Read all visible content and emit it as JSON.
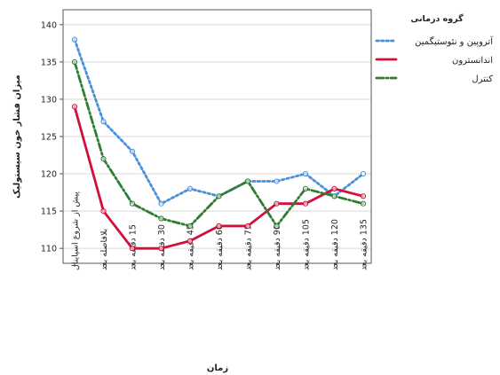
{
  "chart_data": {
    "type": "line",
    "xlabel": "زمان",
    "ylabel": "میزان فشار خون سیستولیک",
    "categories": [
      "پیش از شروع اسپاینال",
      "بلافاصله بعد",
      "15 دقیقه بعد",
      "30 دقیقه بعد",
      "45 دقیقه بعد",
      "60 دقیقه بعد",
      "75 دقیقه بعد",
      "90 دقیقه بعد",
      "105 دقیقه بعد",
      "120 دقیقه بعد",
      "135 دقیقه بعد"
    ],
    "ylim": [
      108,
      142
    ],
    "yticks": [
      110,
      115,
      120,
      125,
      130,
      135,
      140
    ],
    "grid": "horizontal",
    "legend": {
      "title": "گروه درمانی",
      "position": "top-right"
    },
    "series": [
      {
        "name": "آتروپین و نئوستیگمین",
        "color": "#4a90d9",
        "dash": "dotted",
        "values": [
          138,
          127,
          123,
          116,
          118,
          117,
          119,
          119,
          120,
          117,
          120
        ]
      },
      {
        "name": "اندانسترون",
        "color": "#d0103a",
        "dash": "solid",
        "values": [
          129,
          115,
          110,
          110,
          111,
          113,
          113,
          116,
          116,
          118,
          117
        ]
      },
      {
        "name": "کنترل",
        "color": "#2e7d32",
        "dash": "dashdot",
        "values": [
          135,
          122,
          116,
          114,
          113,
          117,
          119,
          113,
          118,
          117,
          116
        ]
      }
    ]
  }
}
